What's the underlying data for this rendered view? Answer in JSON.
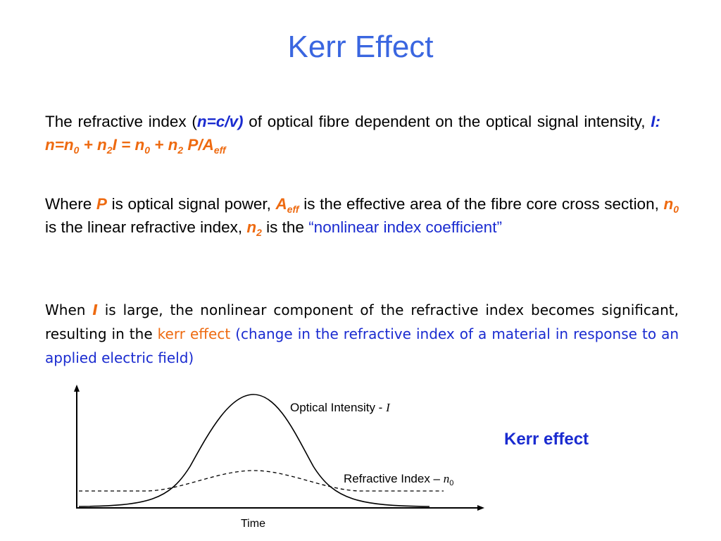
{
  "title": "Kerr Effect",
  "p1": {
    "t1": "The refractive index (",
    "formula": "n=c/v)",
    "t2": " of optical fibre dependent on the optical signal intensity, ",
    "I": "I:",
    "eq_a": "n=n",
    "eq_sub0a": "0",
    "eq_b": " + n",
    "eq_sub2a": "2",
    "eq_c": "I = n",
    "eq_sub0b": "0",
    "eq_d": " + n",
    "eq_sub2b": "2",
    "eq_e": " P/A",
    "eq_subeff": "eff"
  },
  "p2": {
    "t1": "Where ",
    "P": "P",
    "t2": " is optical signal power, ",
    "A": "A",
    "A_sub": "eff",
    "t3": " is the effective area of the fibre core cross section, ",
    "n0": "n",
    "n0_sub": "0",
    "t4": " is the linear refractive index, ",
    "n2": "n",
    "n2_sub": "2",
    "t5": " is the ",
    "quote": "“nonlinear index coefficient”"
  },
  "p3": {
    "t1": "When ",
    "I": "I",
    "t2": " is large, the nonlinear component of the refractive index becomes significant, resulting in the ",
    "kerr": "kerr effect",
    "t3": " ",
    "paren": "(change in the refractive index of a material in response to an applied electric field)"
  },
  "figure": {
    "label_intensity": "Optical Intensity - ",
    "label_intensity_sym": "I",
    "label_index": "Refractive Index – ",
    "label_index_sym": "n",
    "label_index_sub": "0",
    "xlabel": "Time"
  },
  "kerr_label": "Kerr effect",
  "colors": {
    "title": "#3a66e0",
    "accent_orange": "#ee6a10",
    "accent_blue": "#1a2bd0"
  }
}
